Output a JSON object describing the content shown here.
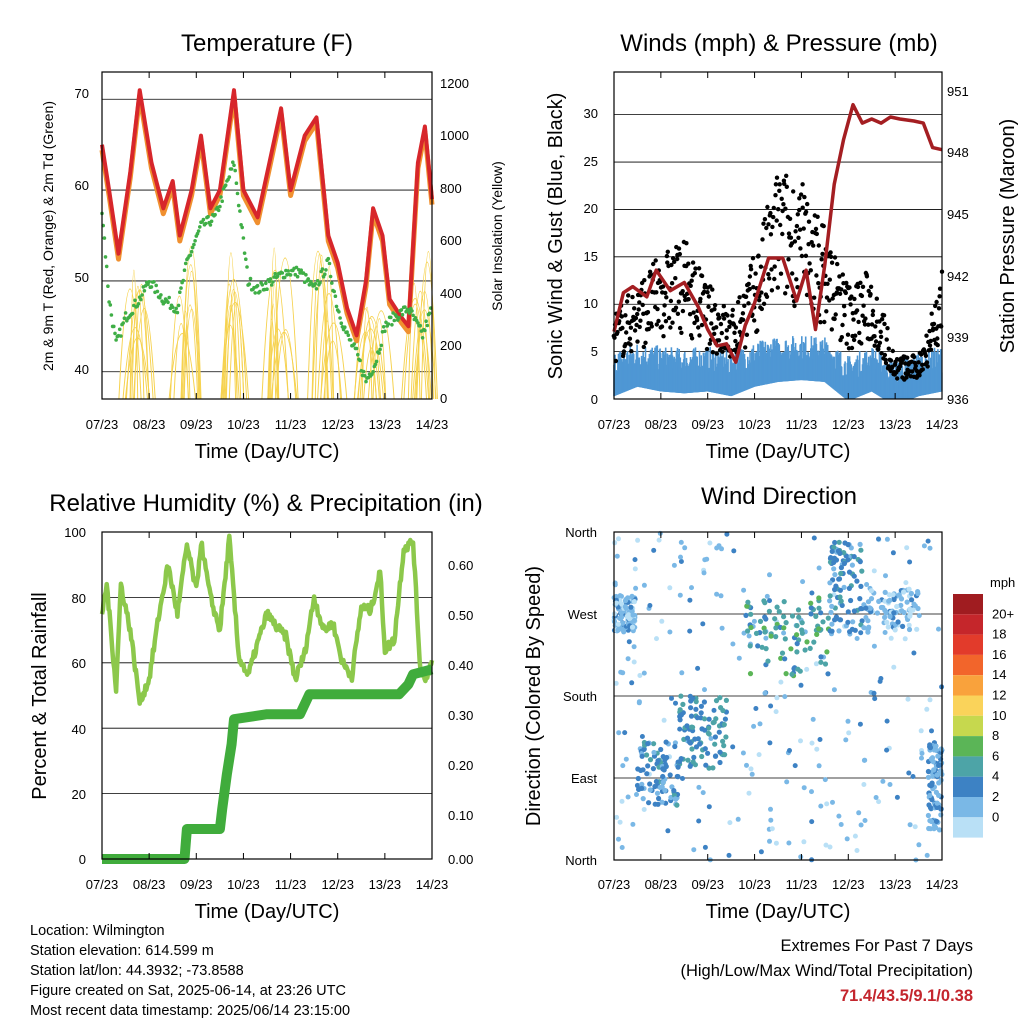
{
  "x_ticks": [
    "07/23",
    "08/23",
    "09/23",
    "10/23",
    "11/23",
    "12/23",
    "13/23",
    "14/23"
  ],
  "x_axis_label": "Time (Day/UTC)",
  "temperature": {
    "title": "Temperature (F)",
    "ylabel_left": "2m & 9m T (Red, Orange) & 2m Td (Green)",
    "ylabel_right": "Solar Insolation (Yellow)",
    "left_ticks": [
      "70",
      "60",
      "50",
      "40"
    ],
    "right_ticks": [
      "1200",
      "1000",
      "800",
      "600",
      "400",
      "200",
      "0"
    ]
  },
  "winds": {
    "title": "Winds (mph) & Pressure (mb)",
    "ylabel_left": "Sonic Wind & Gust (Blue, Black)",
    "ylabel_right": "Station Pressure (Maroon)",
    "left_ticks": [
      "30",
      "25",
      "20",
      "15",
      "10",
      "5",
      "0"
    ],
    "right_ticks": [
      "951",
      "948",
      "945",
      "942",
      "939",
      "936"
    ]
  },
  "humidity": {
    "title": "Relative Humidity (%) & Precipitation (in)",
    "ylabel_left": "Percent & Total Rainfall",
    "left_ticks": [
      "100",
      "80",
      "60",
      "40",
      "20",
      "0"
    ],
    "right_ticks": [
      "0.60",
      "0.50",
      "0.40",
      "0.30",
      "0.20",
      "0.10",
      "0.00"
    ]
  },
  "direction": {
    "title": "Wind Direction",
    "ylabel_left": "Direction (Colored By Speed)",
    "left_ticks": [
      "North",
      "West",
      "South",
      "East",
      "North"
    ],
    "legend_title": "mph",
    "legend_labels": [
      "20+",
      "18",
      "16",
      "14",
      "12",
      "10",
      "8",
      "6",
      "4",
      "2",
      "0"
    ],
    "legend_colors": [
      "#a01c20",
      "#c5262b",
      "#e23b2b",
      "#f2652b",
      "#f9a23c",
      "#fad35a",
      "#c6d84e",
      "#5bb557",
      "#4da4a7",
      "#3d82c4",
      "#7ab8e6",
      "#b9e0f6"
    ]
  },
  "footer": {
    "location": "Location: Wilmington",
    "elevation": "Station elevation: 614.599 m",
    "latlon": "Station lat/lon: 44.3932; -73.8588",
    "created": "Figure created on Sat, 2025-06-14, at 23:26 UTC",
    "recent": "Most recent data timestamp: 2025/06/14 23:15:00",
    "extremes_title": "Extremes For Past 7 Days",
    "extremes_sub": "(High/Low/Max Wind/Total Precipitation)",
    "extremes_values": "71.4/43.5/9.1/0.38"
  },
  "chart_data": [
    {
      "type": "line",
      "title": "Temperature (F)",
      "xlabel": "Time (Day/UTC)",
      "ylabel": "2m & 9m T (Red, Orange) & 2m Td (Green)",
      "y2label": "Solar Insolation (Yellow)",
      "x": [
        "07/23",
        "08/23",
        "09/23",
        "10/23",
        "11/23",
        "12/23",
        "13/23",
        "14/23"
      ],
      "ylim": [
        37,
        73
      ],
      "y2lim": [
        0,
        1250
      ],
      "series": [
        {
          "name": "2m T",
          "color": "#d7262b",
          "axis": "left",
          "x": [
            0,
            0.15,
            0.35,
            0.6,
            0.8,
            1.05,
            1.3,
            1.5,
            1.65,
            1.9,
            2.1,
            2.3,
            2.5,
            2.8,
            3.0,
            3.3,
            3.55,
            3.8,
            4.0,
            4.3,
            4.55,
            4.8,
            5.0,
            5.2,
            5.4,
            5.6,
            5.75,
            5.95,
            6.1,
            6.35,
            6.5,
            6.7,
            6.85,
            7.0
          ],
          "y": [
            65,
            60,
            53,
            62,
            71,
            63,
            58,
            61,
            55,
            60,
            66,
            58,
            60,
            71,
            60,
            57,
            63,
            69,
            60,
            66,
            68,
            55,
            52,
            47,
            44,
            50,
            58,
            55,
            48,
            46,
            45,
            63,
            67,
            59
          ]
        },
        {
          "name": "Td",
          "color": "#3fae46",
          "axis": "left",
          "x": [
            0,
            0.15,
            0.3,
            0.5,
            0.8,
            1.0,
            1.3,
            1.6,
            1.8,
            2.1,
            2.4,
            2.6,
            2.8,
            3.1,
            3.3,
            3.6,
            3.9,
            4.2,
            4.5,
            4.8,
            5.0,
            5.2,
            5.4,
            5.6,
            5.8,
            6.0,
            6.2,
            6.5,
            6.8,
            7.0
          ],
          "y": [
            58,
            48,
            43,
            46,
            48,
            50,
            48,
            47,
            52,
            56,
            57,
            60,
            63,
            50,
            49,
            50,
            51,
            51,
            49,
            52,
            47,
            44,
            42,
            39,
            41,
            45,
            46,
            47,
            44,
            47
          ]
        },
        {
          "name": "Solar Insolation",
          "color": "#f6d24f",
          "axis": "right",
          "peaks": [
            [
              0.75,
              1000
            ],
            [
              1.75,
              1200
            ],
            [
              2.75,
              1150
            ],
            [
              3.75,
              1120
            ],
            [
              4.75,
              1150
            ],
            [
              5.75,
              700
            ],
            [
              6.75,
              1100
            ]
          ]
        }
      ]
    },
    {
      "type": "line",
      "title": "Winds (mph) & Pressure (mb)",
      "xlabel": "Time (Day/UTC)",
      "ylabel": "Sonic Wind & Gust (Blue, Black)",
      "y2label": "Station Pressure (Maroon)",
      "x": [
        "07/23",
        "08/23",
        "09/23",
        "10/23",
        "11/23",
        "12/23",
        "13/23",
        "14/23"
      ],
      "ylim": [
        0,
        34.5
      ],
      "y2lim": [
        936,
        952
      ],
      "series": [
        {
          "name": "Station Pressure",
          "color": "#a41e22",
          "axis": "right",
          "x": [
            0,
            0.2,
            0.4,
            0.7,
            0.9,
            1.2,
            1.5,
            1.8,
            2.0,
            2.2,
            2.4,
            2.6,
            2.8,
            3.0,
            3.3,
            3.6,
            3.9,
            4.1,
            4.3,
            4.5,
            4.7,
            4.9,
            5.1,
            5.3,
            5.5,
            5.7,
            5.9,
            6.1,
            6.4,
            6.6,
            6.8,
            7.0
          ],
          "y": [
            939.3,
            941.2,
            941.5,
            941.0,
            942.3,
            941.3,
            941.7,
            940.5,
            939.4,
            938.6,
            938.7,
            937.8,
            939.6,
            940.7,
            942.9,
            942.9,
            940.8,
            942.3,
            939.4,
            942.6,
            946.5,
            948.7,
            950.4,
            949.5,
            949.7,
            949.5,
            949.8,
            949.7,
            949.6,
            949.5,
            948.3,
            948.2
          ]
        },
        {
          "name": "Sonic Wind",
          "color": "#4f97d4",
          "axis": "left",
          "x": [
            0,
            0.5,
            1.0,
            1.5,
            2.0,
            2.5,
            3.0,
            3.5,
            4.0,
            4.5,
            5.0,
            5.5,
            6.0,
            6.5,
            7.0
          ],
          "y": [
            2.5,
            3.5,
            3.0,
            2.8,
            3.0,
            2.5,
            3.5,
            4.0,
            4.2,
            4.0,
            2.0,
            3.0,
            1.5,
            2.5,
            3.0
          ]
        },
        {
          "name": "Gust",
          "color": "#000000",
          "axis": "left",
          "x": [
            0,
            0.5,
            1.0,
            1.5,
            2.0,
            2.5,
            3.0,
            3.5,
            4.0,
            4.5,
            5.0,
            5.5,
            6.0,
            6.5,
            7.0
          ],
          "y": [
            6,
            8,
            10,
            11,
            8,
            6,
            10,
            16,
            15,
            12,
            8,
            9,
            3,
            3,
            9
          ]
        }
      ]
    },
    {
      "type": "line",
      "title": "Relative Humidity (%) & Precipitation (in)",
      "xlabel": "Time (Day/UTC)",
      "ylabel": "Percent & Total Rainfall",
      "x": [
        "07/23",
        "08/23",
        "09/23",
        "10/23",
        "11/23",
        "12/23",
        "13/23",
        "14/23"
      ],
      "ylim": [
        0,
        100
      ],
      "y2lim": [
        0,
        0.655
      ],
      "series": [
        {
          "name": "Relative Humidity",
          "color": "#8cc84b",
          "axis": "left",
          "x": [
            0,
            0.1,
            0.3,
            0.4,
            0.6,
            0.8,
            1.0,
            1.2,
            1.4,
            1.6,
            1.8,
            2.0,
            2.1,
            2.3,
            2.5,
            2.7,
            2.9,
            3.1,
            3.3,
            3.5,
            3.7,
            3.9,
            4.1,
            4.3,
            4.5,
            4.7,
            4.9,
            5.1,
            5.3,
            5.5,
            5.7,
            5.9,
            6.0,
            6.2,
            6.4,
            6.6,
            6.75,
            6.9,
            7.0
          ],
          "y": [
            75,
            84,
            52,
            84,
            70,
            48,
            55,
            74,
            90,
            75,
            96,
            82,
            97,
            80,
            70,
            98,
            62,
            56,
            66,
            75,
            71,
            68,
            55,
            63,
            80,
            70,
            72,
            60,
            56,
            77,
            76,
            88,
            64,
            67,
            95,
            97,
            58,
            55,
            62
          ]
        },
        {
          "name": "Total Rainfall",
          "color": "#40ac3c",
          "axis": "right",
          "x": [
            0,
            1.75,
            1.8,
            2.5,
            2.55,
            2.65,
            2.75,
            2.8,
            3.5,
            4.0,
            4.2,
            4.4,
            5.0,
            5.5,
            6.1,
            6.3,
            6.5,
            6.6,
            7.0
          ],
          "y": [
            0.0,
            0.0,
            0.06,
            0.06,
            0.1,
            0.17,
            0.23,
            0.28,
            0.29,
            0.29,
            0.29,
            0.33,
            0.33,
            0.33,
            0.33,
            0.33,
            0.35,
            0.37,
            0.38
          ]
        }
      ]
    },
    {
      "type": "scatter",
      "title": "Wind Direction",
      "xlabel": "Time (Day/UTC)",
      "ylabel": "Direction (Colored By Speed)",
      "x": [
        "07/23",
        "08/23",
        "09/23",
        "10/23",
        "11/23",
        "12/23",
        "13/23",
        "14/23"
      ],
      "y_ticks": [
        "North",
        "West",
        "South",
        "East",
        "North"
      ],
      "ylim": [
        0,
        360
      ],
      "legend_title": "mph",
      "clusters": [
        {
          "x": [
            0.0,
            0.45
          ],
          "y": [
            250,
            290
          ],
          "speed": 2
        },
        {
          "x": [
            0.5,
            1.4
          ],
          "y": [
            60,
            130
          ],
          "speed": 4
        },
        {
          "x": [
            1.4,
            2.4
          ],
          "y": [
            100,
            180
          ],
          "speed": 5
        },
        {
          "x": [
            2.8,
            4.6
          ],
          "y": [
            200,
            290
          ],
          "speed": 6
        },
        {
          "x": [
            4.6,
            5.3
          ],
          "y": [
            250,
            350
          ],
          "speed": 4
        },
        {
          "x": [
            5.3,
            6.5
          ],
          "y": [
            250,
            300
          ],
          "speed": 2
        },
        {
          "x": [
            6.7,
            7.0
          ],
          "y": [
            30,
            130
          ],
          "speed": 3
        }
      ]
    }
  ]
}
